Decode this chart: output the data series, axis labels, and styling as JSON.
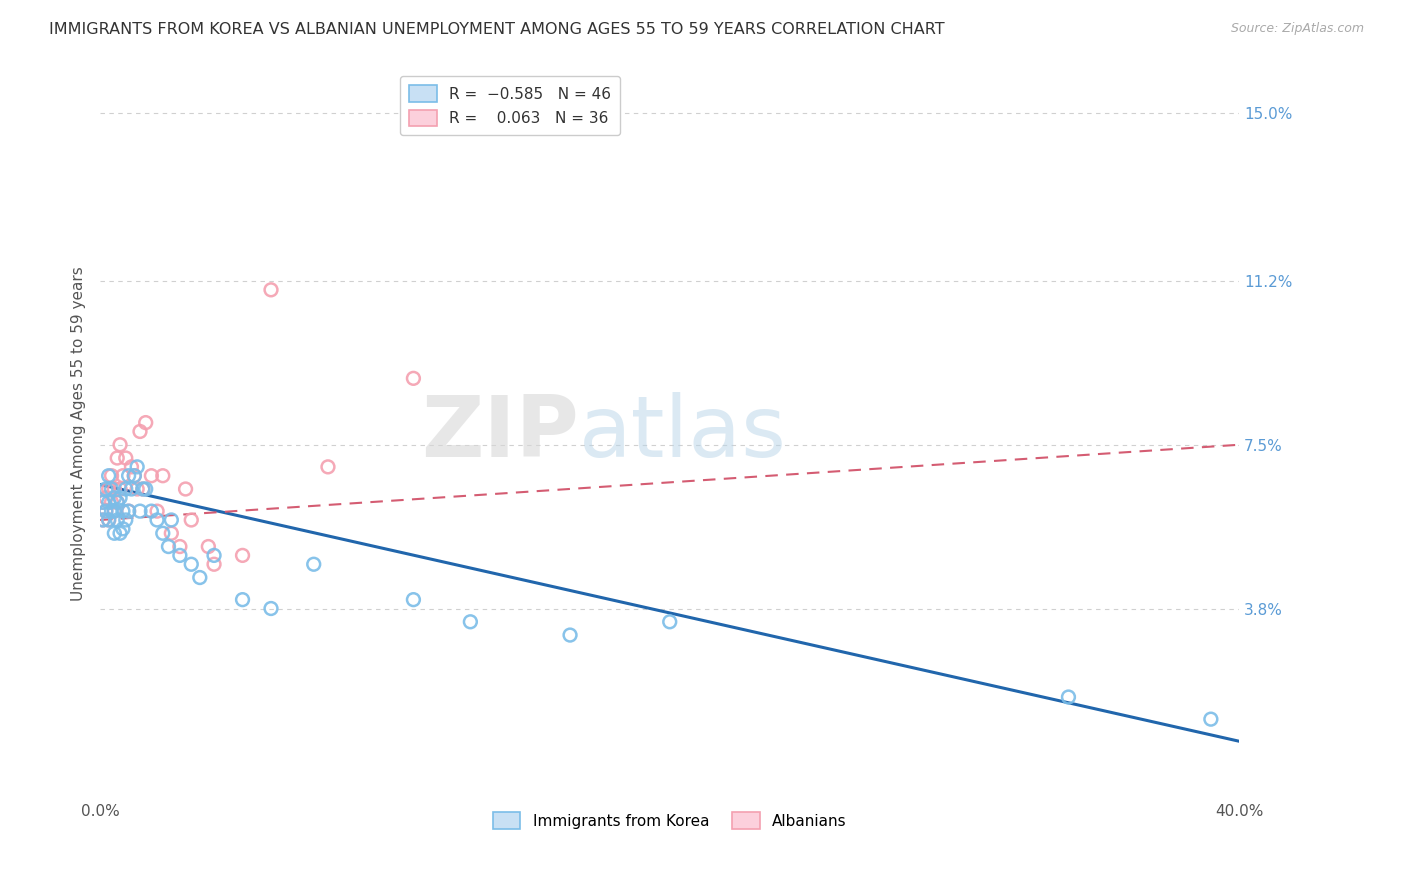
{
  "title": "IMMIGRANTS FROM KOREA VS ALBANIAN UNEMPLOYMENT AMONG AGES 55 TO 59 YEARS CORRELATION CHART",
  "source": "Source: ZipAtlas.com",
  "ylabel": "Unemployment Among Ages 55 to 59 years",
  "xlim": [
    0.0,
    0.4
  ],
  "ylim": [
    -0.005,
    0.16
  ],
  "yticks": [
    0.038,
    0.075,
    0.112,
    0.15
  ],
  "ytick_labels": [
    "3.8%",
    "7.5%",
    "11.2%",
    "15.0%"
  ],
  "watermark_text": "ZIPatlas",
  "title_fontsize": 11.5,
  "axis_label_fontsize": 11,
  "tick_fontsize": 11,
  "legend_fontsize": 11,
  "scatter_size": 85,
  "blue_color": "#7bbde8",
  "pink_color": "#f4a0b0",
  "blue_line_color": "#2166ac",
  "pink_line_color": "#d45c72",
  "grid_color": "#d0d0d0",
  "right_label_color": "#5b9bd5",
  "background_color": "#ffffff",
  "blue_scatter_x": [
    0.001,
    0.001,
    0.002,
    0.002,
    0.003,
    0.003,
    0.003,
    0.004,
    0.004,
    0.005,
    0.005,
    0.005,
    0.006,
    0.006,
    0.007,
    0.007,
    0.008,
    0.008,
    0.009,
    0.009,
    0.01,
    0.01,
    0.011,
    0.012,
    0.013,
    0.014,
    0.015,
    0.016,
    0.018,
    0.02,
    0.022,
    0.024,
    0.025,
    0.028,
    0.032,
    0.035,
    0.04,
    0.05,
    0.06,
    0.075,
    0.11,
    0.13,
    0.165,
    0.2,
    0.34,
    0.39
  ],
  "blue_scatter_y": [
    0.058,
    0.062,
    0.06,
    0.065,
    0.058,
    0.062,
    0.068,
    0.06,
    0.065,
    0.055,
    0.06,
    0.063,
    0.058,
    0.062,
    0.055,
    0.063,
    0.056,
    0.06,
    0.058,
    0.065,
    0.06,
    0.068,
    0.065,
    0.068,
    0.07,
    0.06,
    0.065,
    0.065,
    0.06,
    0.058,
    0.055,
    0.052,
    0.058,
    0.05,
    0.048,
    0.045,
    0.05,
    0.04,
    0.038,
    0.048,
    0.04,
    0.035,
    0.032,
    0.035,
    0.018,
    0.013
  ],
  "pink_scatter_x": [
    0.001,
    0.001,
    0.002,
    0.002,
    0.003,
    0.003,
    0.004,
    0.004,
    0.005,
    0.005,
    0.006,
    0.006,
    0.007,
    0.007,
    0.008,
    0.009,
    0.01,
    0.011,
    0.012,
    0.013,
    0.014,
    0.015,
    0.016,
    0.018,
    0.02,
    0.022,
    0.025,
    0.028,
    0.03,
    0.032,
    0.038,
    0.04,
    0.05,
    0.06,
    0.08,
    0.11
  ],
  "pink_scatter_y": [
    0.058,
    0.062,
    0.06,
    0.063,
    0.058,
    0.065,
    0.062,
    0.068,
    0.06,
    0.065,
    0.062,
    0.072,
    0.065,
    0.075,
    0.068,
    0.072,
    0.06,
    0.07,
    0.068,
    0.065,
    0.078,
    0.065,
    0.08,
    0.068,
    0.06,
    0.068,
    0.055,
    0.052,
    0.065,
    0.058,
    0.052,
    0.048,
    0.05,
    0.11,
    0.07,
    0.09
  ],
  "blue_line_x0": 0.0,
  "blue_line_x1": 0.4,
  "blue_line_y0": 0.066,
  "blue_line_y1": 0.008,
  "pink_line_x0": 0.0,
  "pink_line_x1": 0.4,
  "pink_line_y0": 0.058,
  "pink_line_y1": 0.075
}
